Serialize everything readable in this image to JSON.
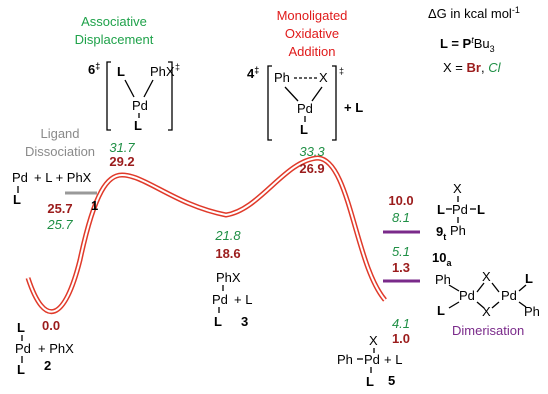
{
  "legend": {
    "delta_g": "ΔG in kcal mol",
    "delta_g_sup": "-1",
    "ligand_def": "L = P",
    "ligand_t": "t",
    "ligand_bu": "Bu",
    "ligand_sub": "3",
    "x_def_prefix": "X = ",
    "x_br": "Br",
    "x_sep": ", ",
    "x_cl": "Cl"
  },
  "colors": {
    "curve": "#e03a2a",
    "br_value": "#9b1c1c",
    "cl_value": "#1f8f45",
    "associative": "#1fa24a",
    "monoligated": "#e01b1b",
    "dissociation": "#8a8a8a",
    "dimerisation": "#7a2a8a"
  },
  "headers": {
    "associative_l1": "Associative",
    "associative_l2": "Displacement",
    "monoligated_l1": "Monoligated",
    "monoligated_l2": "Oxidative",
    "monoligated_l3": "Addition",
    "dissociation_l1": "Ligand",
    "dissociation_l2": "Dissociation",
    "dimerisation": "Dimerisation"
  },
  "species": {
    "ts6": {
      "label": "6",
      "dagger": "‡",
      "pd": "Pd",
      "L": "L",
      "phx": "PhX",
      "br": "29.2",
      "cl": "31.7"
    },
    "ts4": {
      "label": "4",
      "dagger": "‡",
      "pd": "Pd",
      "L": "L",
      "ph": "Ph",
      "x": "X",
      "plus_l": "+ L",
      "br": "26.9",
      "cl": "33.3"
    },
    "s1": {
      "label": "1",
      "pd": "Pd",
      "L": "L",
      "plus": "+ L + PhX",
      "br": "25.7",
      "cl": "25.7"
    },
    "s2": {
      "label": "2",
      "L": "L",
      "pd": "Pd",
      "plus": "+ PhX",
      "br": "0.0"
    },
    "s3": {
      "label": "3",
      "phx": "PhX",
      "pd": "Pd",
      "plus": "+ L",
      "L": "L",
      "br": "18.6",
      "cl": "21.8"
    },
    "s5": {
      "label": "5",
      "x": "X",
      "ph": "Ph",
      "pd": "Pd",
      "plus": "+ L",
      "L": "L",
      "br": "1.0",
      "cl": "4.1"
    },
    "s9t": {
      "label": "9",
      "sub": "t",
      "x": "X",
      "L": "L",
      "pd": "Pd",
      "ph": "Ph",
      "br": "10.0",
      "cl": "8.1"
    },
    "s10a": {
      "label": "10",
      "sub": "a",
      "ph": "Ph",
      "x": "X",
      "pd": "Pd",
      "L": "L",
      "br": "1.3",
      "cl": "5.1"
    }
  }
}
